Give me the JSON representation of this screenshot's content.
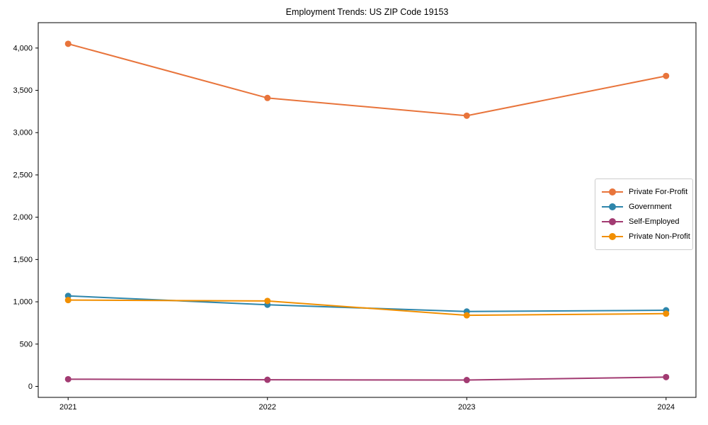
{
  "figure": {
    "title": "Employment Trends: US ZIP Code 19153"
  },
  "chart_data": {
    "type": "line",
    "title": "Employment Trends: US ZIP Code 19153",
    "xlabel": "",
    "ylabel": "",
    "x": [
      2021,
      2022,
      2023,
      2024
    ],
    "x_tick_labels": [
      "2021",
      "2022",
      "2023",
      "2024"
    ],
    "series": [
      {
        "name": "Private For-Profit",
        "color": "#E8743B",
        "values": [
          4050,
          3410,
          3200,
          3670
        ]
      },
      {
        "name": "Government",
        "color": "#2E86AB",
        "values": [
          1070,
          965,
          885,
          900
        ]
      },
      {
        "name": "Self-Employed",
        "color": "#A23B72",
        "values": [
          85,
          78,
          75,
          110
        ]
      },
      {
        "name": "Private Non-Profit",
        "color": "#F18F01",
        "values": [
          1020,
          1010,
          840,
          860
        ]
      }
    ],
    "xlim": [
      2020.85,
      2024.15
    ],
    "ylim": [
      -130,
      4300
    ],
    "y_ticks": [
      0,
      500,
      1000,
      1500,
      2000,
      2500,
      3000,
      3500,
      4000
    ],
    "y_tick_labels": [
      "0",
      "500",
      "1,000",
      "1,500",
      "2,000",
      "2,500",
      "3,000",
      "3,500",
      "4,000"
    ],
    "grid": false,
    "legend_position": "right",
    "marker": "circle",
    "line_width": 2,
    "axis_color": "#000000"
  }
}
